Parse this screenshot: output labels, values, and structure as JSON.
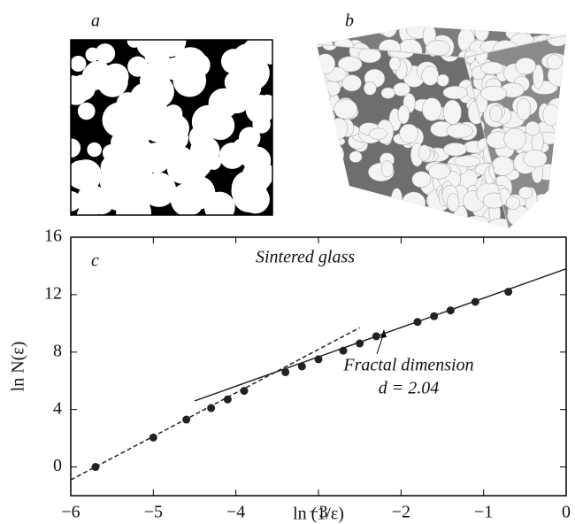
{
  "panels": [
    "a",
    "b"
  ],
  "chart_data": {
    "type": "scatter",
    "label": "c",
    "title": "Sintered glass",
    "x_label": "ln (1/ε)",
    "y_label": "ln N(ε)",
    "annotation": "Fractal dimension",
    "annotation_value": "d = 2.04",
    "x": [
      -5.7,
      -5.0,
      -4.6,
      -4.3,
      -4.1,
      -3.9,
      -3.4,
      -3.2,
      -3.0,
      -2.7,
      -2.5,
      -2.3,
      -1.8,
      -1.6,
      -1.4,
      -1.1,
      -0.7
    ],
    "values": [
      0,
      2.05,
      3.3,
      4.1,
      4.7,
      5.3,
      6.6,
      7.0,
      7.5,
      8.1,
      8.6,
      9.1,
      10.1,
      10.5,
      10.9,
      11.5,
      12.2
    ],
    "color": "#222222",
    "lines": [
      {
        "style": "dashed",
        "x": [
          -6,
          -2.5
        ],
        "values": [
          -0.9,
          9.7
        ]
      },
      {
        "style": "solid",
        "x": [
          -4.5,
          0
        ],
        "values": [
          4.6,
          13.8
        ]
      }
    ],
    "xlim": [
      -6,
      0
    ],
    "ylim": [
      -2,
      16
    ],
    "xticks": [
      {
        "value": -6,
        "label": "−6"
      },
      {
        "value": -5,
        "label": "−5"
      },
      {
        "value": -4,
        "label": "−4"
      },
      {
        "value": -3,
        "label": "−3"
      },
      {
        "value": -2,
        "label": "−2"
      },
      {
        "value": -1,
        "label": "−1"
      },
      0
    ],
    "yticks": [
      0,
      4,
      8,
      12,
      16
    ]
  }
}
